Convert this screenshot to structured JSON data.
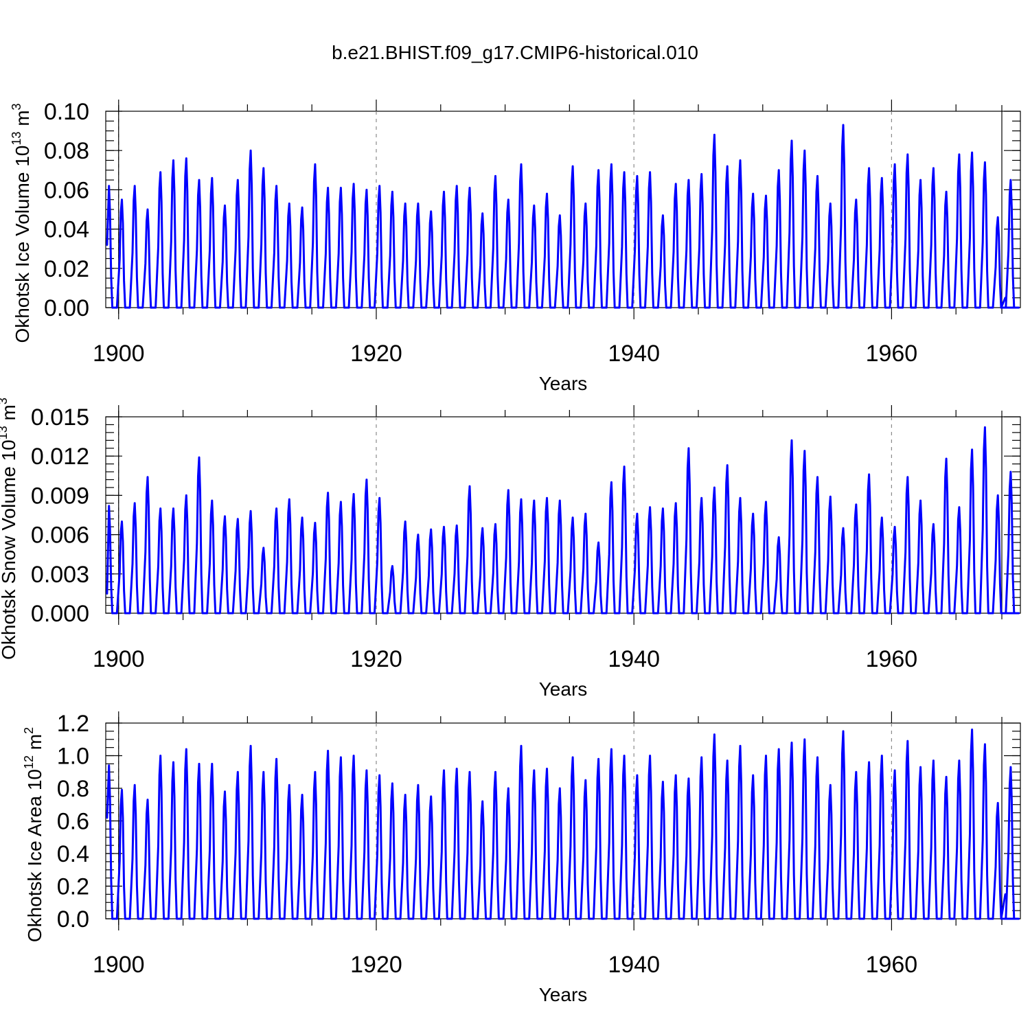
{
  "title": "b.e21.BHIST.f09_g17.CMIP6-historical.010",
  "line_color": "#0000ff",
  "chart_data": [
    {
      "type": "line",
      "name": "ice-volume",
      "ylabel_main": "Okhotsk Ice Volume 10",
      "ylabel_exp": "13",
      "ylabel_unit": " m",
      "ylabel_unit_exp": "3",
      "xlabel": "Years",
      "xlim": [
        1899,
        1970
      ],
      "ylim": [
        0,
        0.1
      ],
      "x_ticks": [
        1900,
        1920,
        1940,
        1960
      ],
      "x_tick_labels": [
        "1900",
        "1920",
        "1940",
        "1960"
      ],
      "y_ticks": [
        0,
        0.02,
        0.04,
        0.06,
        0.08,
        0.1
      ],
      "y_tick_labels": [
        "0.00",
        "0.02",
        "0.04",
        "0.06",
        "0.08",
        "0.10"
      ],
      "y_minor_step": 0.005,
      "start_value": 0.032,
      "end_value": 0.005,
      "series": [
        {
          "name": "Okhotsk Ice Volume",
          "peak_years": [
            1899,
            1900,
            1901,
            1902,
            1903,
            1904,
            1905,
            1906,
            1907,
            1908,
            1909,
            1910,
            1911,
            1912,
            1913,
            1914,
            1915,
            1916,
            1917,
            1918,
            1919,
            1920,
            1921,
            1922,
            1923,
            1924,
            1925,
            1926,
            1927,
            1928,
            1929,
            1930,
            1931,
            1932,
            1933,
            1934,
            1935,
            1936,
            1937,
            1938,
            1939,
            1940,
            1941,
            1942,
            1943,
            1944,
            1945,
            1946,
            1947,
            1948,
            1949,
            1950,
            1951,
            1952,
            1953,
            1954,
            1955,
            1956,
            1957,
            1958,
            1959,
            1960,
            1961,
            1962,
            1963,
            1964,
            1965,
            1966,
            1967,
            1968,
            1969
          ],
          "peaks": [
            0.062,
            0.055,
            0.062,
            0.05,
            0.069,
            0.075,
            0.076,
            0.065,
            0.066,
            0.052,
            0.065,
            0.08,
            0.071,
            0.062,
            0.053,
            0.051,
            0.073,
            0.061,
            0.061,
            0.063,
            0.06,
            0.062,
            0.059,
            0.053,
            0.053,
            0.049,
            0.059,
            0.062,
            0.061,
            0.048,
            0.067,
            0.055,
            0.073,
            0.052,
            0.058,
            0.047,
            0.072,
            0.053,
            0.07,
            0.073,
            0.069,
            0.067,
            0.069,
            0.047,
            0.063,
            0.065,
            0.068,
            0.088,
            0.072,
            0.075,
            0.058,
            0.057,
            0.07,
            0.085,
            0.08,
            0.067,
            0.053,
            0.093,
            0.055,
            0.071,
            0.066,
            0.073,
            0.078,
            0.065,
            0.071,
            0.059,
            0.078,
            0.079,
            0.074,
            0.046,
            0.065
          ]
        }
      ]
    },
    {
      "type": "line",
      "name": "snow-volume",
      "ylabel_main": "Okhotsk Snow Volume 10",
      "ylabel_exp": "13",
      "ylabel_unit": " m",
      "ylabel_unit_exp": "3",
      "xlabel": "Years",
      "xlim": [
        1899,
        1970
      ],
      "ylim": [
        0,
        0.015
      ],
      "x_ticks": [
        1900,
        1920,
        1940,
        1960
      ],
      "x_tick_labels": [
        "1900",
        "1920",
        "1940",
        "1960"
      ],
      "y_ticks": [
        0,
        0.003,
        0.006,
        0.009,
        0.012,
        0.015
      ],
      "y_tick_labels": [
        "0.000",
        "0.003",
        "0.006",
        "0.009",
        "0.012",
        "0.015"
      ],
      "y_minor_step": 0.0006,
      "start_value": 0.0015,
      "end_value": 0.0,
      "series": [
        {
          "name": "Okhotsk Snow Volume",
          "peak_years": [
            1899,
            1900,
            1901,
            1902,
            1903,
            1904,
            1905,
            1906,
            1907,
            1908,
            1909,
            1910,
            1911,
            1912,
            1913,
            1914,
            1915,
            1916,
            1917,
            1918,
            1919,
            1920,
            1921,
            1922,
            1923,
            1924,
            1925,
            1926,
            1927,
            1928,
            1929,
            1930,
            1931,
            1932,
            1933,
            1934,
            1935,
            1936,
            1937,
            1938,
            1939,
            1940,
            1941,
            1942,
            1943,
            1944,
            1945,
            1946,
            1947,
            1948,
            1949,
            1950,
            1951,
            1952,
            1953,
            1954,
            1955,
            1956,
            1957,
            1958,
            1959,
            1960,
            1961,
            1962,
            1963,
            1964,
            1965,
            1966,
            1967,
            1968,
            1969
          ],
          "peaks": [
            0.0082,
            0.007,
            0.0084,
            0.0104,
            0.008,
            0.008,
            0.009,
            0.0119,
            0.0086,
            0.0074,
            0.0072,
            0.0078,
            0.005,
            0.008,
            0.0087,
            0.0073,
            0.0069,
            0.0092,
            0.0085,
            0.0091,
            0.0102,
            0.0088,
            0.0036,
            0.007,
            0.006,
            0.0064,
            0.0066,
            0.0067,
            0.0097,
            0.0065,
            0.0068,
            0.0094,
            0.0087,
            0.0086,
            0.0088,
            0.0086,
            0.0073,
            0.0076,
            0.0054,
            0.01,
            0.0112,
            0.0076,
            0.0081,
            0.008,
            0.0084,
            0.0126,
            0.0088,
            0.0096,
            0.0113,
            0.0088,
            0.0076,
            0.0085,
            0.0058,
            0.0132,
            0.0124,
            0.0104,
            0.0089,
            0.0065,
            0.0083,
            0.0106,
            0.0073,
            0.0066,
            0.0104,
            0.0086,
            0.0068,
            0.0118,
            0.0081,
            0.0125,
            0.0142,
            0.009,
            0.0108
          ]
        }
      ]
    },
    {
      "type": "line",
      "name": "ice-area",
      "ylabel_main": "Okhotsk Ice Area 10",
      "ylabel_exp": "12",
      "ylabel_unit": " m",
      "ylabel_unit_exp": "2",
      "xlabel": "Years",
      "xlim": [
        1899,
        1970
      ],
      "ylim": [
        0,
        1.2
      ],
      "x_ticks": [
        1900,
        1920,
        1940,
        1960
      ],
      "x_tick_labels": [
        "1900",
        "1920",
        "1940",
        "1960"
      ],
      "y_ticks": [
        0,
        0.2,
        0.4,
        0.6,
        0.8,
        1.0,
        1.2
      ],
      "y_tick_labels": [
        "0.0",
        "0.2",
        "0.4",
        "0.6",
        "0.8",
        "1.0",
        "1.2"
      ],
      "y_minor_step": 0.05,
      "start_value": 0.62,
      "end_value": 0.15,
      "series": [
        {
          "name": "Okhotsk Ice Area",
          "peak_years": [
            1899,
            1900,
            1901,
            1902,
            1903,
            1904,
            1905,
            1906,
            1907,
            1908,
            1909,
            1910,
            1911,
            1912,
            1913,
            1914,
            1915,
            1916,
            1917,
            1918,
            1919,
            1920,
            1921,
            1922,
            1923,
            1924,
            1925,
            1926,
            1927,
            1928,
            1929,
            1930,
            1931,
            1932,
            1933,
            1934,
            1935,
            1936,
            1937,
            1938,
            1939,
            1940,
            1941,
            1942,
            1943,
            1944,
            1945,
            1946,
            1947,
            1948,
            1949,
            1950,
            1951,
            1952,
            1953,
            1954,
            1955,
            1956,
            1957,
            1958,
            1959,
            1960,
            1961,
            1962,
            1963,
            1964,
            1965,
            1966,
            1967,
            1968,
            1969
          ],
          "peaks": [
            0.94,
            0.79,
            0.82,
            0.73,
            1.0,
            0.96,
            1.04,
            0.95,
            0.95,
            0.78,
            0.9,
            1.06,
            0.9,
            0.98,
            0.82,
            0.76,
            0.9,
            1.03,
            0.99,
            1.0,
            0.91,
            0.88,
            0.83,
            0.76,
            0.82,
            0.75,
            0.91,
            0.92,
            0.9,
            0.72,
            0.9,
            0.8,
            1.06,
            0.91,
            0.92,
            0.8,
            0.99,
            0.85,
            0.98,
            1.04,
            1.0,
            0.88,
            1.0,
            0.84,
            0.88,
            0.86,
            0.99,
            1.13,
            0.97,
            1.06,
            0.88,
            1.0,
            1.04,
            1.08,
            1.1,
            0.99,
            0.82,
            1.15,
            0.9,
            0.96,
            1.0,
            0.91,
            1.09,
            0.93,
            0.97,
            0.87,
            0.97,
            1.16,
            1.07,
            0.71,
            0.93
          ]
        }
      ]
    }
  ]
}
